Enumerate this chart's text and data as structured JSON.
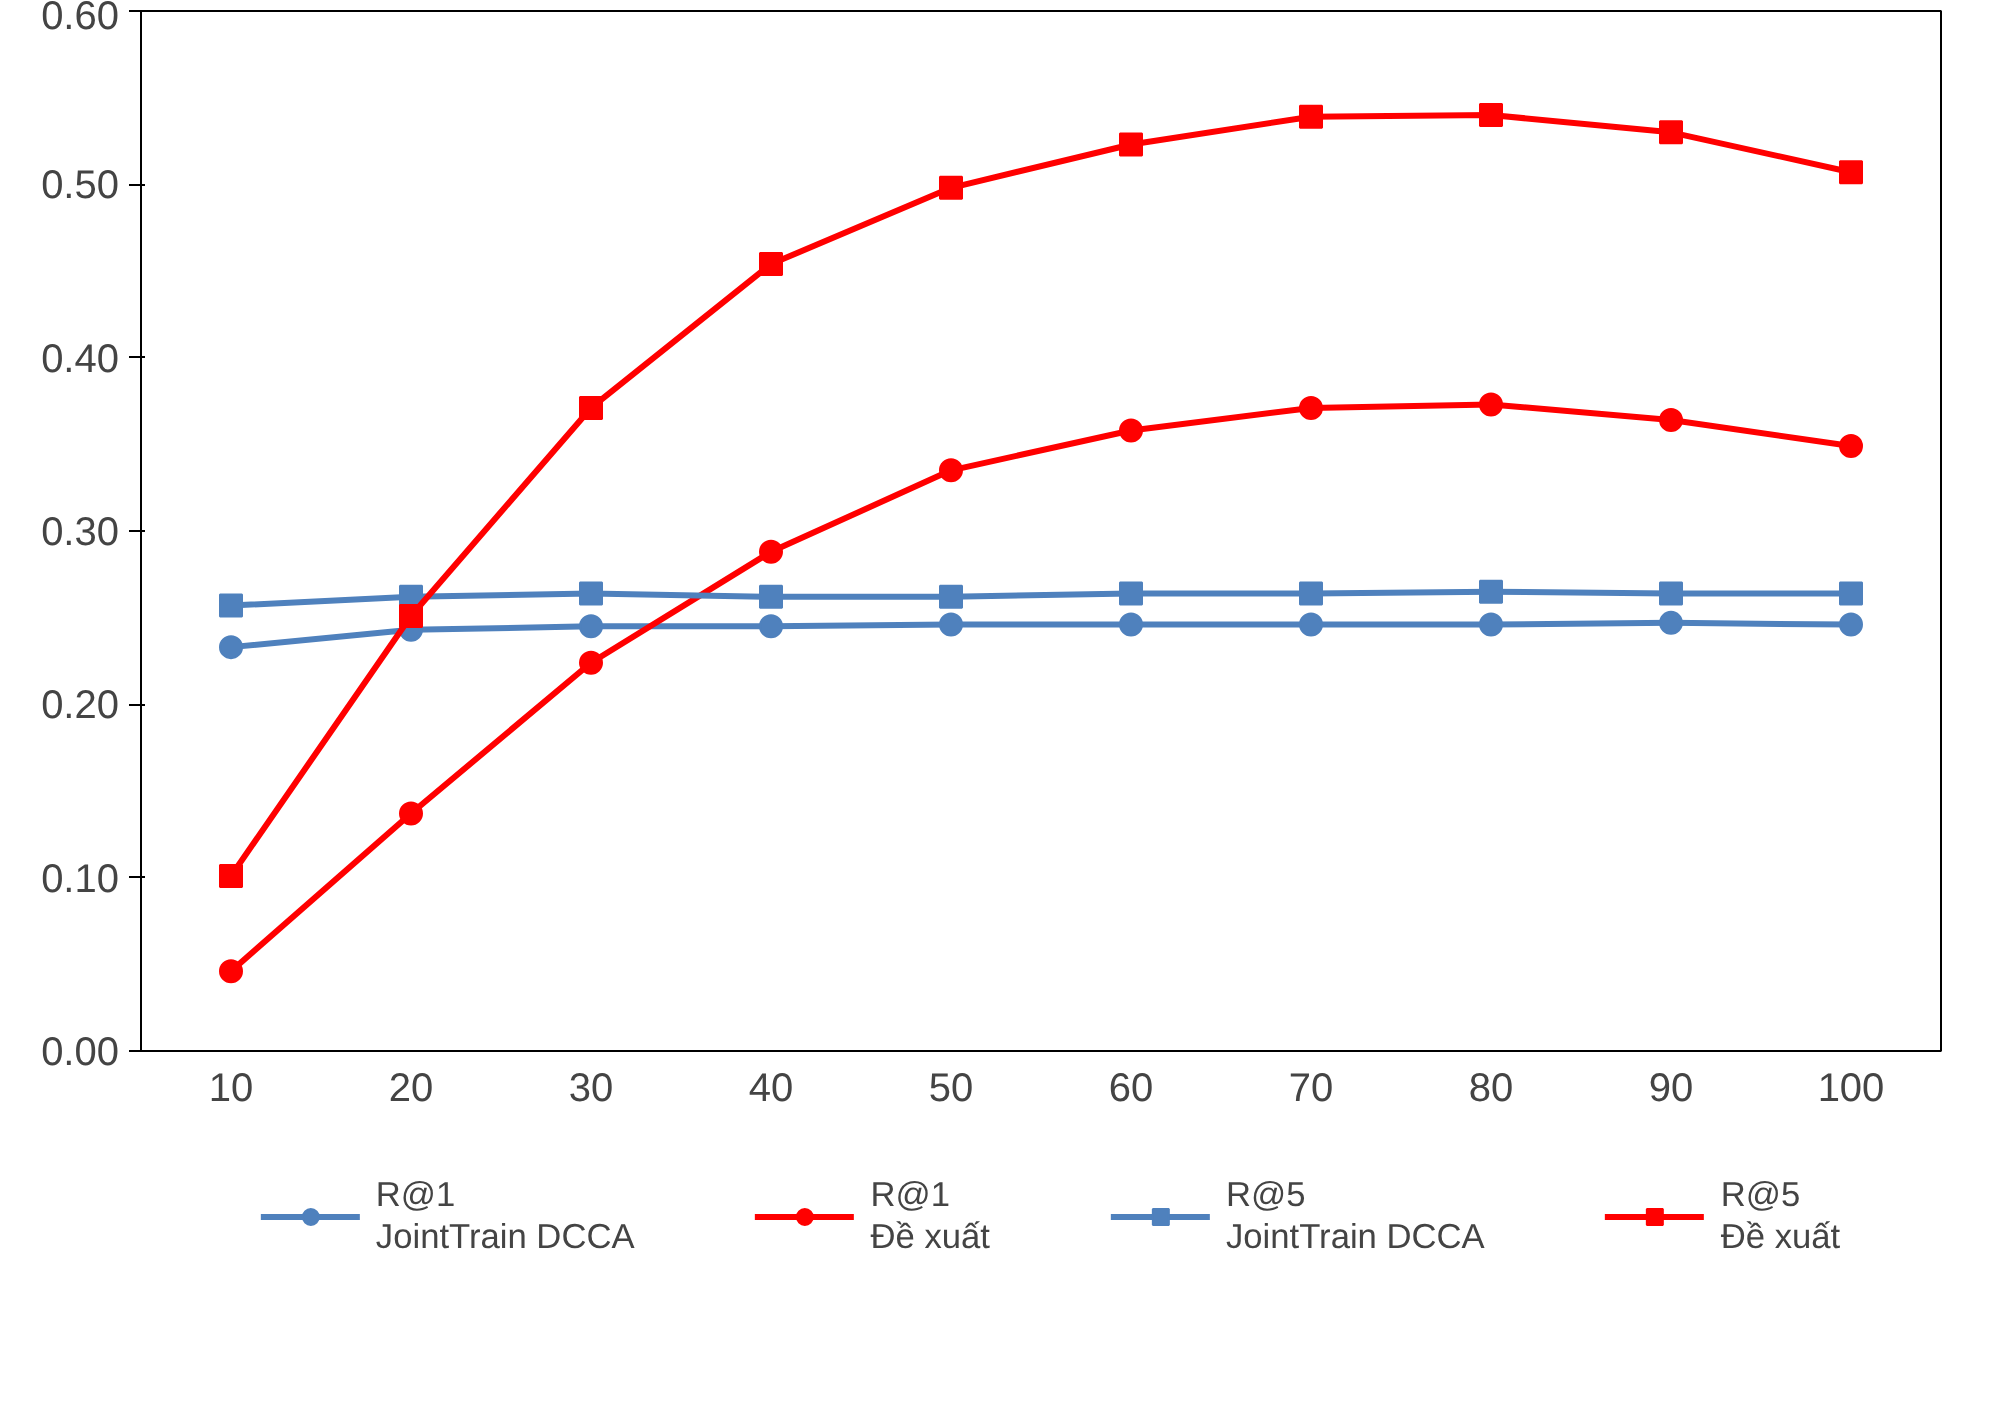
{
  "chart_data": {
    "type": "line",
    "categories": [
      "10",
      "20",
      "30",
      "40",
      "50",
      "60",
      "70",
      "80",
      "90",
      "100"
    ],
    "ylim": [
      0,
      0.6
    ],
    "yticks": [
      {
        "value": 0,
        "label": "0.00"
      },
      {
        "value": 0.1,
        "label": "0.10"
      },
      {
        "value": 0.2,
        "label": "0.20"
      },
      {
        "value": 0.3,
        "label": "0.30"
      },
      {
        "value": 0.4,
        "label": "0.40"
      },
      {
        "value": 0.5,
        "label": "0.50"
      },
      {
        "value": 0.6,
        "label": "0.60"
      }
    ],
    "grid": false,
    "legend": "bottom",
    "series": [
      {
        "name": "R@1\nJointTrain DCCA",
        "color": "#4f81bd",
        "marker": "circle",
        "values": [
          0.233,
          0.243,
          0.245,
          0.245,
          0.246,
          0.246,
          0.246,
          0.246,
          0.247,
          0.246
        ]
      },
      {
        "name": "R@1\nĐề xuất",
        "color": "#ff0000",
        "marker": "circle",
        "values": [
          0.046,
          0.137,
          0.224,
          0.288,
          0.335,
          0.358,
          0.371,
          0.373,
          0.364,
          0.349
        ]
      },
      {
        "name": "R@5\nJointTrain DCCA",
        "color": "#4f81bd",
        "marker": "square",
        "values": [
          0.257,
          0.262,
          0.264,
          0.262,
          0.262,
          0.264,
          0.264,
          0.265,
          0.264,
          0.264
        ]
      },
      {
        "name": "R@5\nĐề xuất",
        "color": "#ff0000",
        "marker": "square",
        "values": [
          0.101,
          0.251,
          0.371,
          0.454,
          0.498,
          0.523,
          0.539,
          0.54,
          0.53,
          0.507
        ]
      }
    ]
  }
}
